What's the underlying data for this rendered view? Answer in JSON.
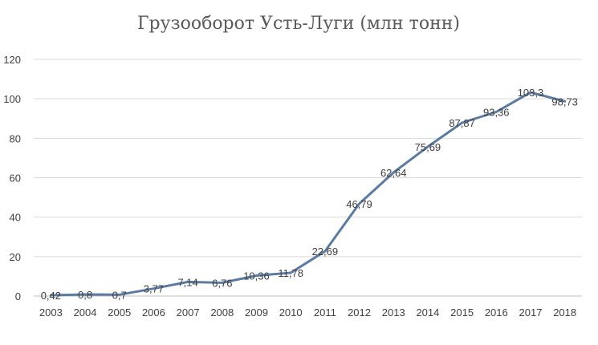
{
  "chart_data": {
    "type": "line",
    "title": "Грузооборот Усть-Луги (млн тонн)",
    "xlabel": "",
    "ylabel": "",
    "categories": [
      "2003",
      "2004",
      "2005",
      "2006",
      "2007",
      "2008",
      "2009",
      "2010",
      "2011",
      "2012",
      "2013",
      "2014",
      "2015",
      "2016",
      "2017",
      "2018"
    ],
    "series": [
      {
        "values": [
          0.42,
          0.8,
          0.7,
          3.77,
          7.14,
          6.76,
          10.36,
          11.78,
          22.69,
          46.79,
          62.64,
          75.69,
          87.87,
          93.36,
          103.3,
          98.73
        ],
        "labels": [
          "0,42",
          "0,8",
          "0,7",
          "3,77",
          "7,14",
          "6,76",
          "10,36",
          "11,78",
          "22,69",
          "46,79",
          "62,64",
          "75,69",
          "87,87",
          "93,36",
          "103,3",
          "98,73"
        ],
        "color": "#5b7ba3"
      }
    ],
    "yticks": [
      "0",
      "20",
      "40",
      "60",
      "80",
      "100",
      "120"
    ],
    "ylim": [
      0,
      120
    ],
    "grid": true,
    "legend": "none"
  }
}
